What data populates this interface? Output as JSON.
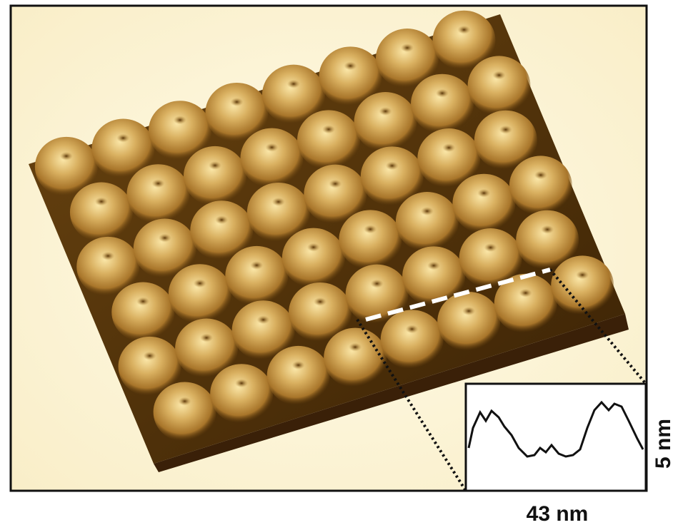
{
  "labels": {
    "scan_width": "43 nm",
    "scan_height": "5 nm"
  }
}
